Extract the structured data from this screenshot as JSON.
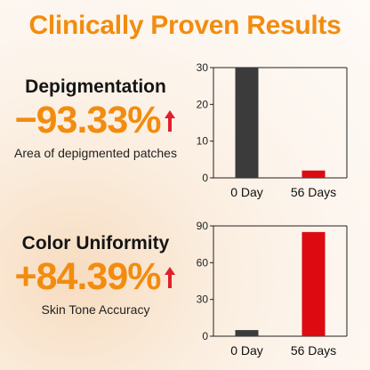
{
  "title": "Clinically Proven Results",
  "metrics": [
    {
      "name": "Depigmentation",
      "value": "−93.33%",
      "description": "Area of depigmented patches",
      "arrow_icon": "red-up-arrow-icon"
    },
    {
      "name": "Color Uniformity",
      "value": "+84.39%",
      "description": "Skin Tone Accuracy",
      "arrow_icon": "red-up-arrow-icon"
    }
  ],
  "colors": {
    "accent": "#f28c10",
    "arrow": "#e0202a",
    "bar_dark": "#3b3b3b",
    "bar_red": "#dd0a12"
  },
  "chart_data": [
    {
      "type": "bar",
      "categories": [
        "0 Day",
        "56 Days"
      ],
      "values": [
        30,
        2
      ],
      "colors": [
        "#3b3b3b",
        "#dd0a12"
      ],
      "ylim": [
        0,
        30
      ],
      "yticks": [
        0,
        10,
        20,
        30
      ],
      "grid": false
    },
    {
      "type": "bar",
      "categories": [
        "0 Day",
        "56 Days"
      ],
      "values": [
        5,
        85
      ],
      "colors": [
        "#3b3b3b",
        "#dd0a12"
      ],
      "ylim": [
        0,
        90
      ],
      "yticks": [
        0,
        30,
        60,
        90
      ],
      "grid": false
    }
  ]
}
